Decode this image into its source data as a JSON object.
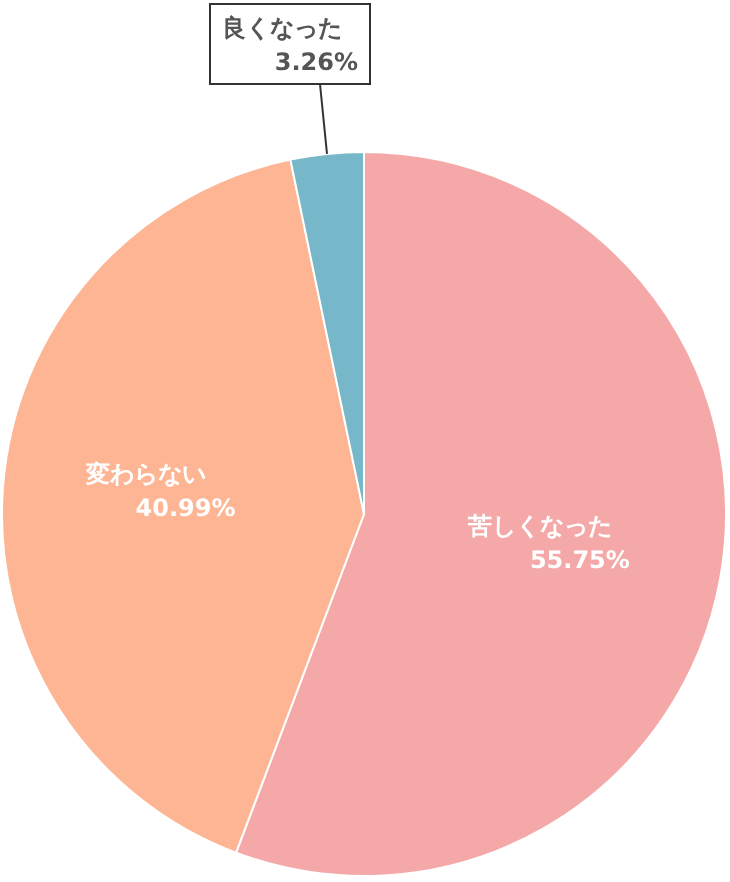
{
  "chart_data": {
    "type": "pie",
    "categories": [
      "苦しくなった",
      "変わらない",
      "良くなった"
    ],
    "values": [
      55.75,
      40.99,
      3.26
    ],
    "colors": [
      "#f4a9a8",
      "#fdb594",
      "#76b7c9"
    ],
    "value_labels": [
      "55.75%",
      "40.99%",
      "3.26%"
    ]
  }
}
